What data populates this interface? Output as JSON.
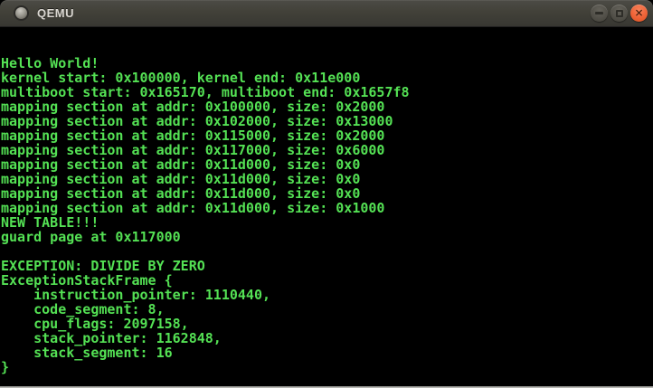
{
  "window": {
    "title": "QEMU",
    "app_icon": "circle-dot-icon",
    "controls": {
      "minimize": {
        "icon": "minimize-icon",
        "glyph": ""
      },
      "maximize": {
        "icon": "maximize-icon",
        "glyph": ""
      },
      "close": {
        "icon": "close-icon",
        "glyph": "✕"
      }
    }
  },
  "terminal": {
    "lines": [
      "",
      "",
      "Hello World!",
      "kernel start: 0x100000, kernel end: 0x11e000",
      "multiboot start: 0x165170, multiboot end: 0x1657f8",
      "mapping section at addr: 0x100000, size: 0x2000",
      "mapping section at addr: 0x102000, size: 0x13000",
      "mapping section at addr: 0x115000, size: 0x2000",
      "mapping section at addr: 0x117000, size: 0x6000",
      "mapping section at addr: 0x11d000, size: 0x0",
      "mapping section at addr: 0x11d000, size: 0x0",
      "mapping section at addr: 0x11d000, size: 0x0",
      "mapping section at addr: 0x11d000, size: 0x1000",
      "NEW TABLE!!!",
      "guard page at 0x117000",
      "",
      "EXCEPTION: DIVIDE BY ZERO",
      "ExceptionStackFrame {",
      "    instruction_pointer: 1110440,",
      "    code_segment: 8,",
      "    cpu_flags: 2097158,",
      "    stack_pointer: 1162848,",
      "    stack_segment: 16",
      "}"
    ]
  },
  "colors": {
    "terminal_bg": "#000000",
    "terminal_text": "#54e154",
    "titlebar_top": "#4c4b46",
    "titlebar_bottom": "#383732",
    "close_button_orange": "#ee6236",
    "button_gray": "#514f48",
    "title_text": "#dad7d1",
    "bottom_edge": "#c6c6c2"
  }
}
